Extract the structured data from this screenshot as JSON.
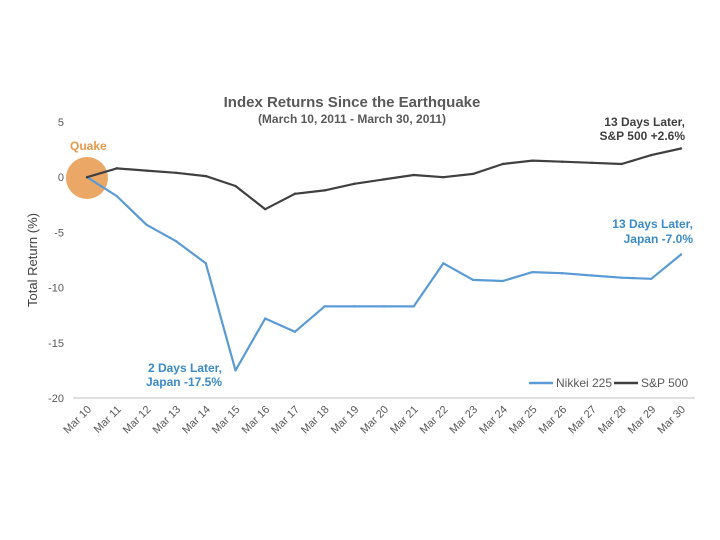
{
  "chart_data": {
    "type": "line",
    "title": "Index Returns Since the Earthquake",
    "subtitle": "(March 10, 2011 - March 30, 2011)",
    "xlabel": "",
    "ylabel": "Total Return (%)",
    "ylim": [
      -20,
      5
    ],
    "yticks": [
      5,
      0,
      -5,
      -10,
      -15,
      -20
    ],
    "categories": [
      "Mar 10",
      "Mar 11",
      "Mar 12",
      "Mar 13",
      "Mar 14",
      "Mar 15",
      "Mar 16",
      "Mar 17",
      "Mar 18",
      "Mar 19",
      "Mar 20",
      "Mar 21",
      "Mar 22",
      "Mar 23",
      "Mar 24",
      "Mar 25",
      "Mar 26",
      "Mar 27",
      "Mar 28",
      "Mar 29",
      "Mar 30"
    ],
    "series": [
      {
        "name": "Nikkei 225",
        "color": "#5B9BD5",
        "values": [
          0,
          -1.7,
          -4.3,
          -5.8,
          -7.8,
          -17.5,
          -12.8,
          -14.0,
          -11.7,
          -11.7,
          -11.7,
          -11.7,
          -7.8,
          -9.3,
          -9.4,
          -8.6,
          -8.7,
          -8.9,
          -9.1,
          -9.2,
          -7.0
        ]
      },
      {
        "name": "S&P 500",
        "color": "#404040",
        "values": [
          0,
          0.8,
          0.6,
          0.4,
          0.1,
          -0.8,
          -2.9,
          -1.5,
          -1.2,
          -0.6,
          -0.2,
          0.2,
          0.0,
          0.3,
          1.2,
          1.5,
          1.4,
          1.3,
          1.2,
          2.0,
          2.6
        ]
      }
    ],
    "annotations": {
      "quake": {
        "text": "Quake",
        "color": "#E8984A"
      },
      "nikkei_low": {
        "line1": "2 Days Later,",
        "line2": "Japan -17.5%",
        "color": "#3B8AC9"
      },
      "nikkei_end": {
        "line1": "13 Days Later,",
        "line2": "Japan -7.0%",
        "color": "#3B8AC9"
      },
      "sp_end": {
        "line1": "13 Days Later,",
        "line2": "S&P 500 +2.6%",
        "color": "#404040"
      }
    },
    "legend_position": "bottom-right"
  }
}
